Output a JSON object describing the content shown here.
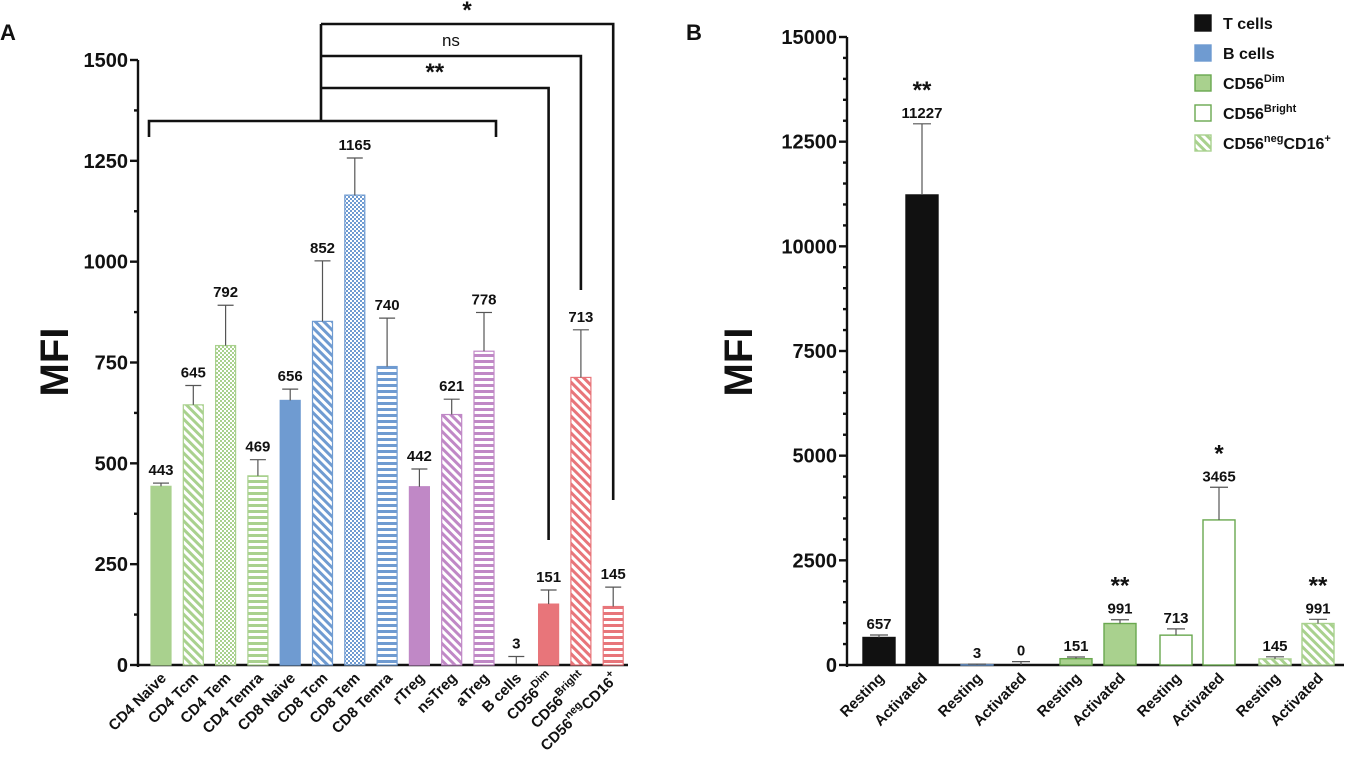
{
  "chart_data": [
    {
      "panel": "A",
      "type": "bar",
      "ylabel": "MFI",
      "ylim": [
        0,
        1500
      ],
      "yticks": [
        "0",
        "250",
        "500",
        "750",
        "1000",
        "1250",
        "1500"
      ],
      "categories": [
        "CD4 Naive",
        "CD4 Tcm",
        "CD4 Tem",
        "CD4 Temra",
        "CD8 Naive",
        "CD8 Tcm",
        "CD8 Tem",
        "CD8 Temra",
        "rTreg",
        "nsTreg",
        "aTreg",
        "B cells",
        "CD56Dim",
        "CD56Bright",
        "CD56negCD16+"
      ],
      "values": [
        443,
        645,
        792,
        469,
        656,
        852,
        1165,
        740,
        442,
        621,
        778,
        3,
        151,
        713,
        145
      ],
      "labels": [
        "443",
        "645",
        "792",
        "469",
        "656",
        "852",
        "1165",
        "740",
        "442",
        "621",
        "778",
        "3",
        "151",
        "713",
        "145"
      ],
      "errors": [
        8,
        48,
        100,
        40,
        28,
        150,
        92,
        120,
        44,
        38,
        96,
        18,
        35,
        118,
        48
      ],
      "colors": [
        "#a9d18e",
        "#a9d18e",
        "#a9d18e",
        "#a9d18e",
        "#6f9bd1",
        "#6f9bd1",
        "#6f9bd1",
        "#6f9bd1",
        "#c088c6",
        "#c088c6",
        "#c088c6",
        "#ffffff",
        "#e8757a",
        "#e8757a",
        "#e8757a"
      ],
      "patterns": [
        "solid",
        "diag",
        "check",
        "horiz",
        "solid",
        "diag",
        "check",
        "horiz",
        "solid",
        "diag",
        "horiz",
        "none",
        "solid",
        "diag",
        "horiz"
      ],
      "significance": [
        {
          "symbol": "**",
          "from_group": "CD4 Naive to aTreg",
          "to": "CD56Dim"
        },
        {
          "symbol": "ns",
          "from_group": "CD4 Naive to aTreg",
          "to": "CD56Bright"
        },
        {
          "symbol": "*",
          "from_group": "CD4 Naive to aTreg",
          "to": "CD56negCD16+"
        }
      ]
    },
    {
      "panel": "B",
      "type": "bar",
      "ylabel": "MFI",
      "ylim": [
        0,
        15000
      ],
      "yticks": [
        "0",
        "2500",
        "5000",
        "7500",
        "10000",
        "12500",
        "15000"
      ],
      "categories": [
        "Resting",
        "Activated",
        "Resting",
        "Activated",
        "Resting",
        "Activated",
        "Resting",
        "Activated",
        "Resting",
        "Activated"
      ],
      "values": [
        657,
        11227,
        3,
        0,
        151,
        991,
        713,
        3465,
        145,
        991
      ],
      "labels": [
        "657",
        "11227",
        "3",
        "0",
        "151",
        "991",
        "713",
        "3465",
        "145",
        "991"
      ],
      "errors": [
        60,
        1700,
        18,
        80,
        40,
        90,
        150,
        780,
        50,
        100
      ],
      "stars": [
        "",
        "**",
        "",
        "",
        "",
        "**",
        "",
        "*",
        "",
        "**"
      ],
      "groups": [
        "T cells",
        "T cells",
        "B cells",
        "B cells",
        "CD56Dim",
        "CD56Dim",
        "CD56Bright",
        "CD56Bright",
        "CD56negCD16+",
        "CD56negCD16+"
      ],
      "legend": {
        "placement": "top-right",
        "entries": [
          {
            "label": "T cells",
            "sup": "",
            "color": "#111111",
            "style": "solid"
          },
          {
            "label": "B cells",
            "sup": "",
            "color": "#6f9bd1",
            "style": "solid"
          },
          {
            "label": "CD56",
            "sup": "Dim",
            "color": "#a9d18e",
            "style": "solid"
          },
          {
            "label": "CD56",
            "sup": "Bright",
            "color": "#a9d18e",
            "style": "open"
          },
          {
            "label": "CD56",
            "sup": "neg",
            "suffix": "CD16",
            "sup2": "+",
            "color": "#a9d18e",
            "style": "diag"
          }
        ]
      }
    }
  ]
}
